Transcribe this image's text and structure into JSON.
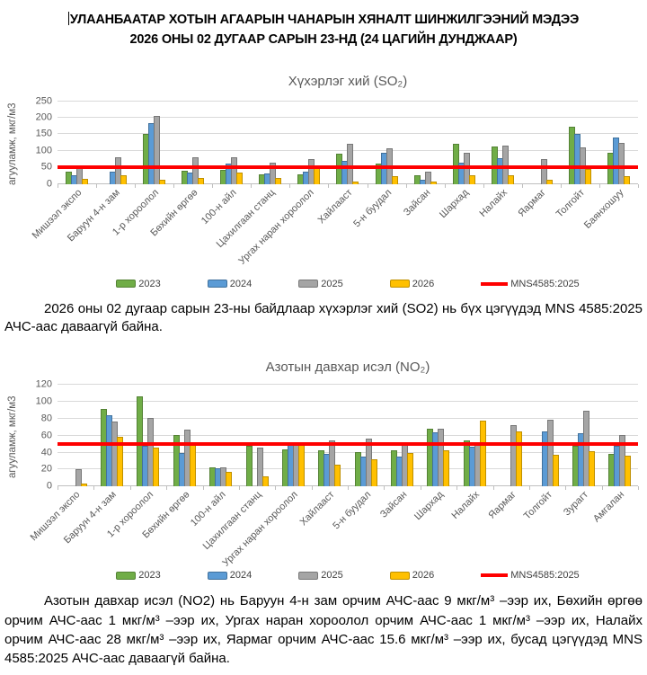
{
  "header": {
    "line1": "УЛААНБААТАР ХОТЫН АГААРЫН ЧАНАРЫН ХЯНАЛТ ШИНЖИЛГЭЭНИЙ МЭДЭЭ",
    "line2": "2026 ОНЫ 02 ДУГААР САРЫН 23-НД (24 ЦАГИЙН ДУНДЖААР)"
  },
  "paragraphs": {
    "so2": "2026 оны 02 дугаар сарын 23-ны байдлаар хүхэрлэг хий (SO2) нь бүх цэгүүдэд MNS 4585:2025 АЧС-аас даваагүй байна.",
    "no2": "Азотын давхар исэл (NO2) нь Баруун 4-н зам орчим АЧС-аас 9 мкг/м³ –ээр их, Бөхийн өргөө орчим АЧС-аас 1 мкг/м³ –ээр их, Ургах наран хороолол орчим АЧС-аас 1 мкг/м³ –ээр их, Налайх орчим АЧС-аас 28 мкг/м³ –ээр их, Яармаг орчим АЧС-аас 15.6 мкг/м³ –ээр их, бусад цэгүүдэд MNS 4585:2025 АЧС-аас даваагүй байна."
  },
  "colors": {
    "y2023": "#70AD47",
    "y2023_border": "#548235",
    "y2024": "#5B9BD5",
    "y2024_border": "#41719C",
    "y2025": "#A5A5A5",
    "y2025_border": "#787878",
    "y2026": "#FFC000",
    "y2026_border": "#BF9000",
    "limit": "#FF0000"
  },
  "chart_data": [
    {
      "type": "bar",
      "title": "Хүхэрлэг хий (SO₂)",
      "ylabel": "агууламж, мкг/м3",
      "xlabel": "",
      "ylim": [
        0,
        250
      ],
      "ytick_step": 50,
      "grid": true,
      "legend_position": "bottom",
      "limit_line": {
        "label": "MNS4585:2025",
        "value": 50,
        "color": "#FF0000"
      },
      "categories": [
        "Мишээл экспо",
        "Баруун 4-н зам",
        "1-р хороолол",
        "Бөхийн өргөө",
        "100-н айл",
        "Цахилгаан станц",
        "Ургах наран хороолол",
        "Хайлааст",
        "5-н буудал",
        "Зайсан",
        "Шархад",
        "Налайх",
        "Яармаг",
        "Толгойт",
        "Баянхошуу"
      ],
      "series": [
        {
          "name": "2023",
          "color": "#70AD47",
          "border": "#548235",
          "values": [
            37,
            0,
            150,
            39,
            41,
            29,
            29,
            91,
            60,
            27,
            122,
            113,
            0,
            172,
            93
          ]
        },
        {
          "name": "2024",
          "color": "#5B9BD5",
          "border": "#41719C",
          "values": [
            25,
            37,
            183,
            33,
            62,
            32,
            37,
            70,
            93,
            12,
            63,
            77,
            0,
            152,
            140
          ]
        },
        {
          "name": "2025",
          "color": "#A5A5A5",
          "border": "#787878",
          "values": [
            55,
            79,
            204,
            80,
            80,
            65,
            75,
            120,
            107,
            36,
            95,
            115,
            75,
            110,
            125
          ]
        },
        {
          "name": "2026",
          "color": "#FFC000",
          "border": "#BF9000",
          "values": [
            15,
            26,
            12,
            17,
            35,
            18,
            47,
            6,
            23,
            8,
            26,
            25,
            12,
            45,
            24
          ]
        }
      ]
    },
    {
      "type": "bar",
      "title": "Азотын давхар исэл (NO₂)",
      "ylabel": "агууламж, мкг/м3",
      "xlabel": "",
      "ylim": [
        0,
        120
      ],
      "ytick_step": 20,
      "grid": true,
      "legend_position": "bottom",
      "limit_line": {
        "label": "MNS4585:2025",
        "value": 50,
        "color": "#FF0000"
      },
      "categories": [
        "Мишээл экспо",
        "Баруун 4-н зам",
        "1-р хороолол",
        "Бөхийн өргөө",
        "100-н айл",
        "Цахилгаан станц",
        "Ургах наран хороолол",
        "Хайлааст",
        "5-н буудал",
        "Зайсан",
        "Шархад",
        "Налайх",
        "Яармаг",
        "Толгойт",
        "Зурагт",
        "Амгалан"
      ],
      "series": [
        {
          "name": "2023",
          "color": "#70AD47",
          "border": "#548235",
          "values": [
            0,
            92,
            106,
            61,
            23,
            48,
            44,
            43,
            41,
            43,
            68,
            55,
            0,
            0,
            48,
            39
          ]
        },
        {
          "name": "2024",
          "color": "#5B9BD5",
          "border": "#41719C",
          "values": [
            0,
            84,
            48,
            40,
            22,
            0,
            49,
            39,
            35,
            35,
            64,
            47,
            0,
            65,
            63,
            48
          ]
        },
        {
          "name": "2025",
          "color": "#A5A5A5",
          "border": "#787878",
          "values": [
            20,
            77,
            81,
            67,
            23,
            46,
            52,
            54,
            57,
            49,
            68,
            50,
            73,
            79,
            89,
            61
          ]
        },
        {
          "name": "2026",
          "color": "#FFC000",
          "border": "#BF9000",
          "values": [
            4,
            59,
            46,
            51,
            17,
            12,
            51,
            26,
            32,
            40,
            43,
            78,
            65.6,
            37,
            42,
            36
          ]
        }
      ]
    }
  ]
}
